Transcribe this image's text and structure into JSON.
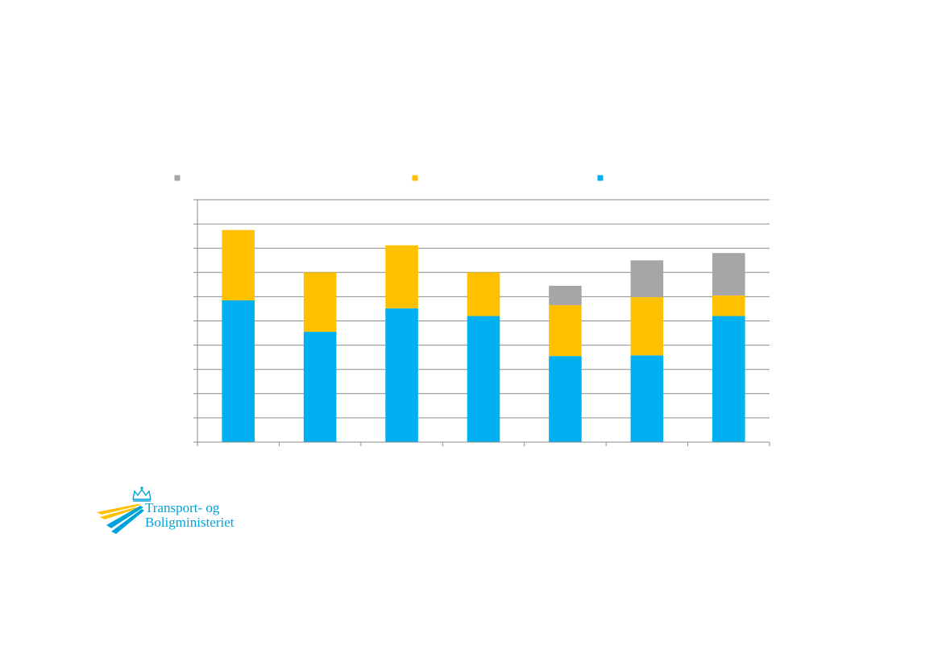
{
  "chart_data": {
    "type": "bar",
    "stacked": true,
    "categories": [
      "",
      "",
      "",
      "",
      "",
      "",
      ""
    ],
    "ylim": [
      0,
      10
    ],
    "grid": true,
    "legend_position": "top",
    "series": [
      {
        "color": "#00b0f0",
        "values": [
          5.85,
          4.55,
          5.52,
          5.2,
          3.55,
          3.58,
          5.2
        ]
      },
      {
        "color": "#ffc000",
        "values": [
          2.9,
          2.45,
          2.6,
          1.8,
          2.1,
          2.4,
          0.85
        ]
      },
      {
        "color": "#a6a6a6",
        "values": [
          0,
          0,
          0,
          0,
          0.8,
          1.52,
          1.75
        ]
      }
    ],
    "legend_order": [
      2,
      1,
      0
    ]
  },
  "logo": {
    "line1": "Transport- og",
    "line2": "Boligministeriet",
    "colors": {
      "blue": "#00a3d9",
      "yellow": "#ffc000"
    }
  }
}
